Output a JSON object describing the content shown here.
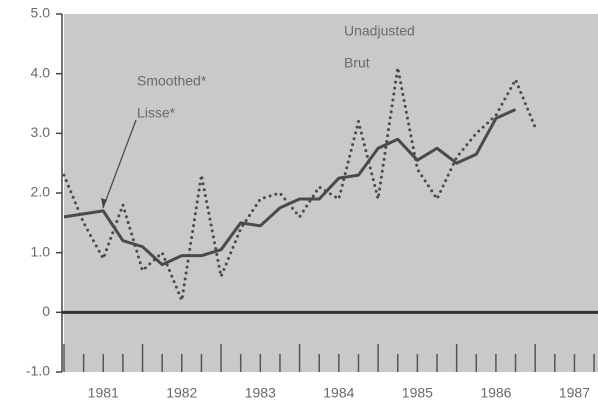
{
  "chart_data": {
    "type": "line",
    "x": [
      1981.0,
      1981.25,
      1981.5,
      1981.75,
      1982.0,
      1982.25,
      1982.5,
      1982.75,
      1983.0,
      1983.25,
      1983.5,
      1983.75,
      1984.0,
      1984.25,
      1984.5,
      1984.75,
      1985.0,
      1985.25,
      1985.5,
      1985.75,
      1986.0,
      1986.25,
      1986.5,
      1986.75,
      1987.0
    ],
    "series": [
      {
        "name": "Smoothed",
        "color": "#4a4a4a",
        "style": "solid",
        "values": [
          1.6,
          1.65,
          1.7,
          1.2,
          1.1,
          0.8,
          0.95,
          0.95,
          1.05,
          1.5,
          1.45,
          1.75,
          1.9,
          1.9,
          2.25,
          2.3,
          2.75,
          2.9,
          2.55,
          2.75,
          2.5,
          2.65,
          3.25,
          3.4,
          null
        ]
      },
      {
        "name": "Unadjusted",
        "color": "#4a4a4a",
        "style": "dotted",
        "values": [
          2.3,
          1.5,
          0.9,
          1.8,
          0.7,
          1.0,
          0.2,
          2.3,
          0.6,
          1.4,
          1.9,
          2.0,
          1.6,
          2.1,
          1.9,
          3.2,
          1.9,
          4.1,
          2.4,
          1.9,
          2.6,
          3.0,
          3.3,
          3.9,
          3.1
        ]
      }
    ],
    "annotations": [
      {
        "lines": [
          "Unadjusted",
          "Brut"
        ]
      },
      {
        "lines": [
          "Smoothed*",
          "Lisse*"
        ]
      }
    ],
    "xlim": [
      1981.0,
      1987.8
    ],
    "xticks": [
      {
        "value": 1981.5,
        "label": "1981"
      },
      {
        "value": 1982.5,
        "label": "1982"
      },
      {
        "value": 1983.5,
        "label": "1983"
      },
      {
        "value": 1984.5,
        "label": "1984"
      },
      {
        "value": 1985.5,
        "label": "1985"
      },
      {
        "value": 1986.5,
        "label": "1986"
      },
      {
        "value": 1987.5,
        "label": "1987"
      }
    ],
    "ylim": [
      -1.0,
      5.0
    ],
    "yticks": [
      {
        "value": -1.0,
        "label": "-1.0"
      },
      0,
      {
        "value": 1.0,
        "label": "1.0"
      },
      {
        "value": 2.0,
        "label": "2.0"
      },
      {
        "value": 3.0,
        "label": "3.0"
      },
      {
        "value": 4.0,
        "label": "4.0"
      },
      {
        "value": 5.0,
        "label": "5.0"
      }
    ],
    "plot_background": "#c9c9c9"
  }
}
